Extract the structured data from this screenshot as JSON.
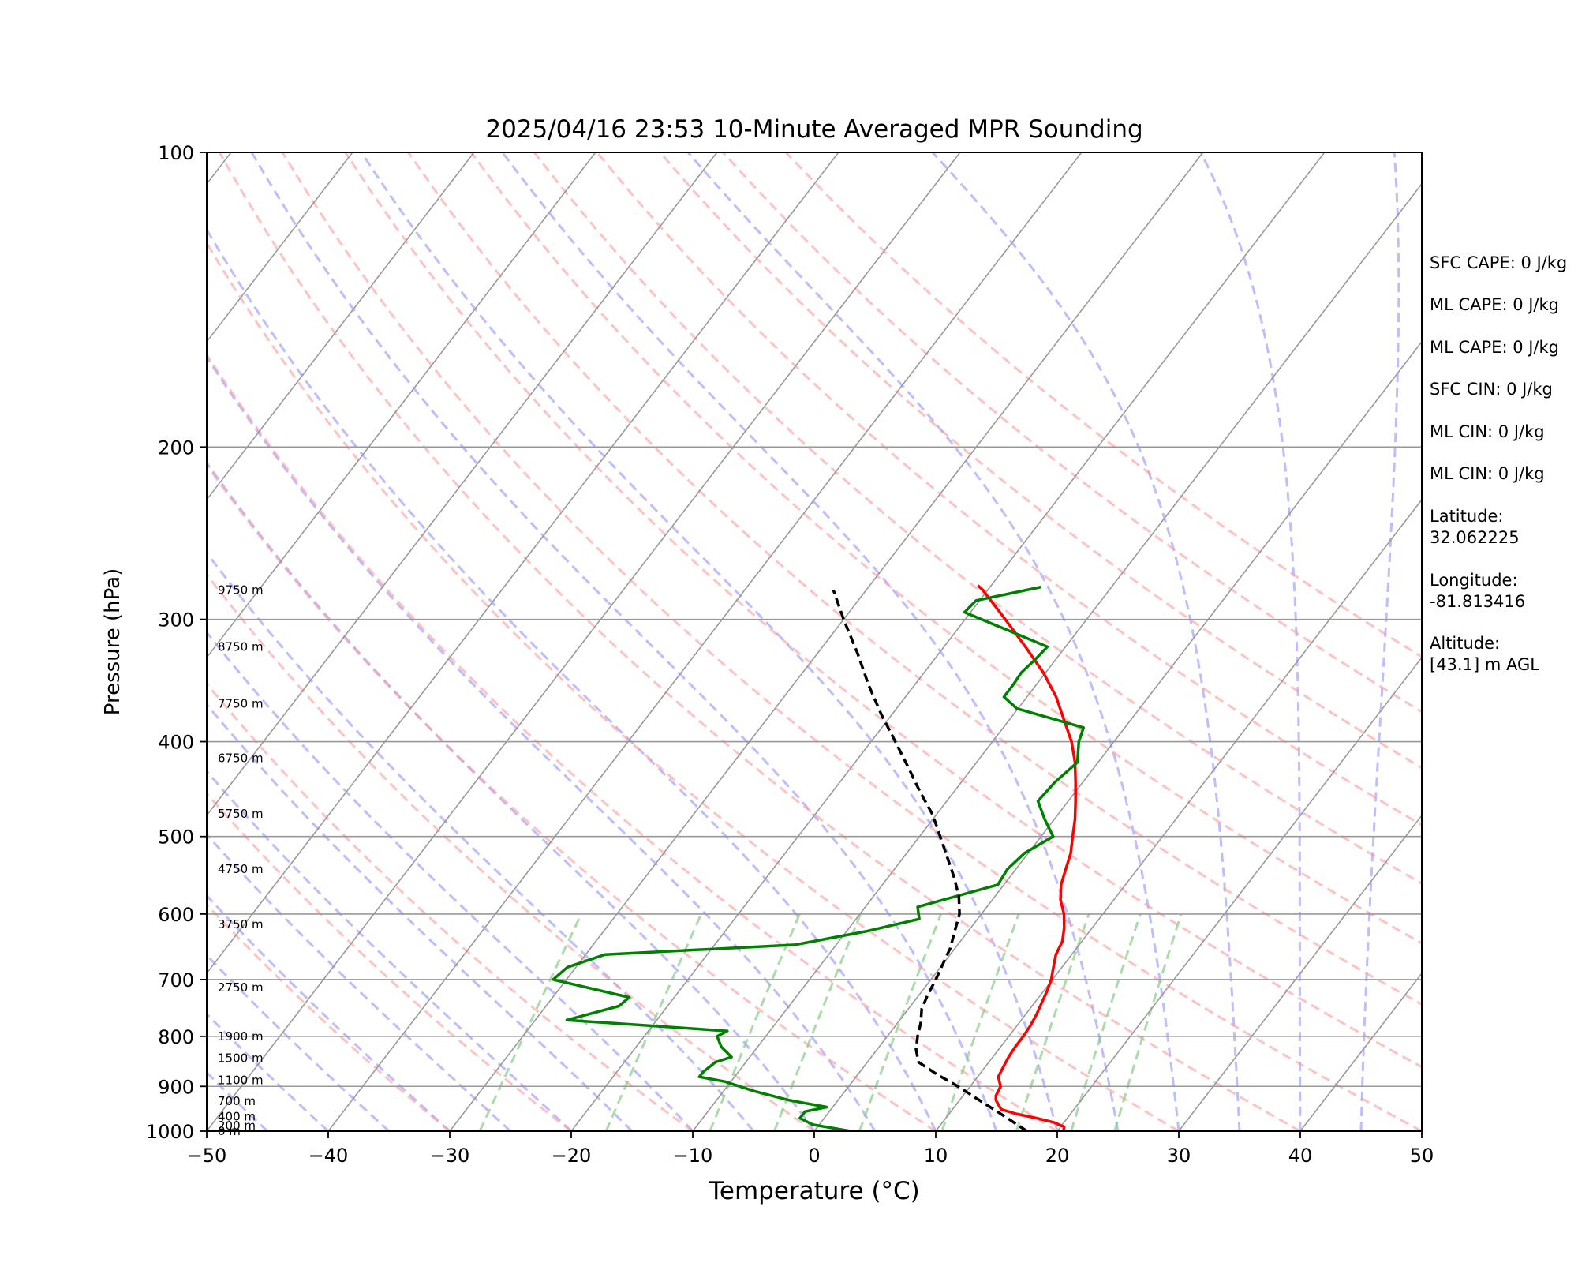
{
  "chart_data": {
    "type": "line",
    "title": "2025/04/16 23:53 10-Minute Averaged MPR Sounding",
    "xlabel": "Temperature (°C)",
    "ylabel": "Pressure (hPa)",
    "xlim": [
      -50,
      50
    ],
    "ylim": [
      1000,
      100
    ],
    "y_scale": "log",
    "grid": true,
    "x_ticks": [
      -50,
      -40,
      -30,
      -20,
      -10,
      0,
      10,
      20,
      30,
      40,
      50
    ],
    "x_tick_labels": [
      "−50",
      "−40",
      "−30",
      "−20",
      "−10",
      "0",
      "10",
      "20",
      "30",
      "40",
      "50"
    ],
    "y_ticks": [
      100,
      200,
      300,
      400,
      500,
      600,
      700,
      800,
      900,
      1000
    ],
    "y_tick_labels": [
      "100",
      "200",
      "300",
      "400",
      "500",
      "600",
      "700",
      "800",
      "900",
      "1000"
    ],
    "height_labels": [
      {
        "text": "9750 m",
        "pressure": 280
      },
      {
        "text": "8750 m",
        "pressure": 320
      },
      {
        "text": "7750 m",
        "pressure": 366
      },
      {
        "text": "6750 m",
        "pressure": 416
      },
      {
        "text": "5750 m",
        "pressure": 474
      },
      {
        "text": "4750 m",
        "pressure": 540
      },
      {
        "text": "3750 m",
        "pressure": 615
      },
      {
        "text": "2750 m",
        "pressure": 713
      },
      {
        "text": "1900 m",
        "pressure": 800
      },
      {
        "text": "1500 m",
        "pressure": 842
      },
      {
        "text": "1100 m",
        "pressure": 887
      },
      {
        "text": "700 m",
        "pressure": 932
      },
      {
        "text": "400 m",
        "pressure": 966
      },
      {
        "text": "200 m",
        "pressure": 987
      },
      {
        "text": "0 m",
        "pressure": 1000
      }
    ],
    "series": [
      {
        "color": "#ff0000",
        "points": [
          [
            1000,
            20.5
          ],
          [
            990,
            20.3
          ],
          [
            980,
            19.2
          ],
          [
            970,
            17.5
          ],
          [
            960,
            15.5
          ],
          [
            950,
            14.0
          ],
          [
            940,
            13.5
          ],
          [
            930,
            13.0
          ],
          [
            920,
            12.7
          ],
          [
            900,
            12.5
          ],
          [
            880,
            11.7
          ],
          [
            860,
            11.5
          ],
          [
            840,
            11.3
          ],
          [
            820,
            11.2
          ],
          [
            800,
            11.2
          ],
          [
            780,
            11.1
          ],
          [
            760,
            10.9
          ],
          [
            740,
            10.6
          ],
          [
            720,
            10.3
          ],
          [
            700,
            9.9
          ],
          [
            680,
            9.3
          ],
          [
            660,
            8.7
          ],
          [
            640,
            8.4
          ],
          [
            620,
            7.7
          ],
          [
            600,
            6.8
          ],
          [
            580,
            5.6
          ],
          [
            560,
            4.7
          ],
          [
            540,
            4.1
          ],
          [
            520,
            3.5
          ],
          [
            500,
            2.6
          ],
          [
            480,
            1.7
          ],
          [
            460,
            0.6
          ],
          [
            440,
            -0.6
          ],
          [
            420,
            -1.9
          ],
          [
            400,
            -3.5
          ],
          [
            380,
            -5.5
          ],
          [
            360,
            -7.6
          ],
          [
            340,
            -10.2
          ],
          [
            320,
            -13.3
          ],
          [
            300,
            -16.7
          ],
          [
            280,
            -20.4
          ],
          [
            277,
            -21.1
          ]
        ]
      },
      {
        "color": "#008000",
        "points": [
          [
            1000,
            3.0
          ],
          [
            985,
            -0.5
          ],
          [
            970,
            -2.0
          ],
          [
            955,
            -2.0
          ],
          [
            945,
            -0.5
          ],
          [
            930,
            -4.0
          ],
          [
            910,
            -7.5
          ],
          [
            890,
            -10.5
          ],
          [
            880,
            -12.9
          ],
          [
            870,
            -12.9
          ],
          [
            850,
            -12.5
          ],
          [
            840,
            -11.5
          ],
          [
            820,
            -13.0
          ],
          [
            800,
            -14.0
          ],
          [
            790,
            -13.5
          ],
          [
            770,
            -27.4
          ],
          [
            745,
            -24.0
          ],
          [
            730,
            -23.7
          ],
          [
            700,
            -31.1
          ],
          [
            680,
            -30.7
          ],
          [
            660,
            -28.4
          ],
          [
            645,
            -13.4
          ],
          [
            625,
            -8.4
          ],
          [
            607,
            -4.8
          ],
          [
            590,
            -5.7
          ],
          [
            560,
            -0.5
          ],
          [
            540,
            -0.7
          ],
          [
            520,
            -0.3
          ],
          [
            500,
            1.0
          ],
          [
            480,
            -0.8
          ],
          [
            460,
            -2.5
          ],
          [
            440,
            -2.3
          ],
          [
            420,
            -1.7
          ],
          [
            400,
            -2.9
          ],
          [
            387,
            -3.4
          ],
          [
            370,
            -10.1
          ],
          [
            360,
            -11.9
          ],
          [
            350,
            -11.9
          ],
          [
            340,
            -12.0
          ],
          [
            330,
            -11.7
          ],
          [
            320,
            -11.5
          ],
          [
            310,
            -15.0
          ],
          [
            295,
            -20.5
          ],
          [
            287,
            -20.3
          ],
          [
            278,
            -15.8
          ]
        ]
      },
      {
        "color": "#000000",
        "dashed": true,
        "points": [
          [
            1000,
            17.5
          ],
          [
            975,
            15.5
          ],
          [
            950,
            13.4
          ],
          [
            925,
            11.2
          ],
          [
            900,
            9.0
          ],
          [
            875,
            6.5
          ],
          [
            850,
            4.2
          ],
          [
            825,
            3.2
          ],
          [
            800,
            2.5
          ],
          [
            775,
            1.9
          ],
          [
            750,
            1.1
          ],
          [
            725,
            0.7
          ],
          [
            700,
            0.4
          ],
          [
            675,
            0.0
          ],
          [
            650,
            -0.4
          ],
          [
            625,
            -1.1
          ],
          [
            600,
            -1.8
          ],
          [
            575,
            -3.0
          ],
          [
            550,
            -4.6
          ],
          [
            525,
            -6.4
          ],
          [
            500,
            -8.3
          ],
          [
            475,
            -10.3
          ],
          [
            450,
            -12.8
          ],
          [
            425,
            -15.3
          ],
          [
            400,
            -18.0
          ],
          [
            375,
            -20.9
          ],
          [
            350,
            -23.8
          ],
          [
            325,
            -26.7
          ],
          [
            300,
            -30.0
          ],
          [
            280,
            -32.7
          ]
        ]
      }
    ],
    "side_stats": [
      "SFC CAPE: 0 J/kg",
      "ML CAPE: 0 J/kg",
      "ML CAPE: 0 J/kg",
      "SFC CIN: 0 J/kg",
      "ML CIN: 0 J/kg",
      "ML CIN: 0 J/kg"
    ],
    "location": {
      "latitude_label": "Latitude:",
      "latitude_value": "32.062225",
      "longitude_label": "Longitude:",
      "longitude_value": "-81.813416",
      "altitude_label": "Altitude:",
      "altitude_value": "[43.1] m AGL"
    },
    "colors": {
      "isotherm": "#999999",
      "dry_adiabat": "#ff9999",
      "moist_adiabat": "#9999ff",
      "mixing_ratio": "#88cc88",
      "isobar": "#999999"
    }
  }
}
